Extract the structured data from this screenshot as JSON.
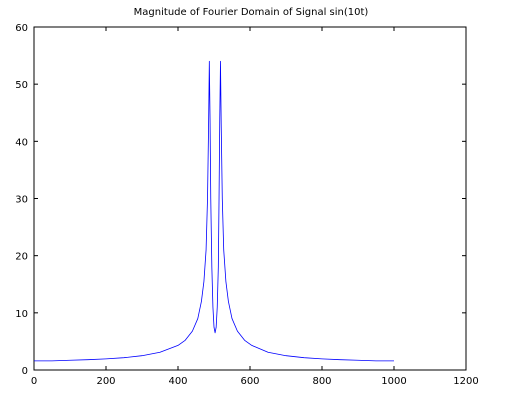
{
  "chart_data": {
    "type": "line",
    "title": "Magnitude of Fourier Domain of Signal sin(10t)",
    "xlabel": "",
    "ylabel": "",
    "xlim": [
      0,
      1200
    ],
    "ylim": [
      0,
      60
    ],
    "xticks": [
      0,
      200,
      400,
      600,
      800,
      1000,
      1200
    ],
    "yticks": [
      0,
      10,
      20,
      30,
      40,
      50,
      60
    ],
    "xtick_labels": [
      "0",
      "200",
      "400",
      "600",
      "800",
      "1000",
      "1200"
    ],
    "ytick_labels": [
      "0",
      "10",
      "20",
      "30",
      "40",
      "50",
      "60"
    ],
    "grid": false,
    "legend": "none",
    "series": [
      {
        "color": "#0000ff",
        "points": [
          [
            0,
            1.6
          ],
          [
            50,
            1.6
          ],
          [
            100,
            1.7
          ],
          [
            150,
            1.8
          ],
          [
            200,
            1.95
          ],
          [
            250,
            2.15
          ],
          [
            300,
            2.5
          ],
          [
            350,
            3.1
          ],
          [
            400,
            4.3
          ],
          [
            420,
            5.2
          ],
          [
            440,
            6.8
          ],
          [
            455,
            9.0
          ],
          [
            465,
            12.0
          ],
          [
            472,
            15.5
          ],
          [
            478,
            21.0
          ],
          [
            482,
            30.0
          ],
          [
            485,
            43.0
          ],
          [
            487,
            54.0
          ],
          [
            489,
            44.0
          ],
          [
            491,
            30.0
          ],
          [
            494,
            18.0
          ],
          [
            497,
            11.0
          ],
          [
            500,
            7.5
          ],
          [
            503,
            6.5
          ],
          [
            506,
            7.5
          ],
          [
            509,
            11.0
          ],
          [
            512,
            18.0
          ],
          [
            514,
            30.0
          ],
          [
            516,
            44.0
          ],
          [
            518,
            54.0
          ],
          [
            520,
            43.0
          ],
          [
            523,
            30.0
          ],
          [
            527,
            21.0
          ],
          [
            533,
            15.5
          ],
          [
            540,
            12.0
          ],
          [
            550,
            9.0
          ],
          [
            565,
            6.8
          ],
          [
            585,
            5.2
          ],
          [
            605,
            4.3
          ],
          [
            650,
            3.1
          ],
          [
            700,
            2.5
          ],
          [
            750,
            2.15
          ],
          [
            800,
            1.95
          ],
          [
            850,
            1.8
          ],
          [
            900,
            1.7
          ],
          [
            950,
            1.6
          ],
          [
            1000,
            1.6
          ]
        ]
      }
    ]
  }
}
